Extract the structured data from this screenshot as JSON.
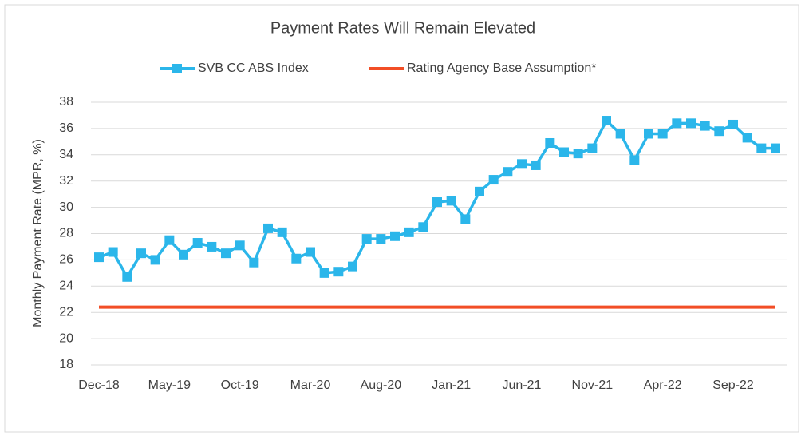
{
  "chart_data": {
    "type": "line",
    "title": "Payment Rates Will Remain Elevated",
    "y_label": "Monthly Payment Rate (MPR, %)",
    "categories": [
      "Dec-18",
      null,
      null,
      null,
      null,
      "May-19",
      null,
      null,
      null,
      null,
      "Oct-19",
      null,
      null,
      null,
      null,
      "Mar-20",
      null,
      null,
      null,
      null,
      "Aug-20",
      null,
      null,
      null,
      null,
      "Jan-21",
      null,
      null,
      null,
      null,
      "Jun-21",
      null,
      null,
      null,
      null,
      "Nov-21",
      null,
      null,
      null,
      null,
      "Apr-22",
      null,
      null,
      null,
      null,
      "Sep-22",
      null,
      null,
      null
    ],
    "series": [
      {
        "name": "SVB CC ABS Index",
        "color": "#2bb6ea",
        "marker": "square",
        "values": [
          26.2,
          26.6,
          24.7,
          26.5,
          26.0,
          27.5,
          26.4,
          27.3,
          27.0,
          26.5,
          27.1,
          25.8,
          28.4,
          28.1,
          26.1,
          26.6,
          25.0,
          25.1,
          25.5,
          27.6,
          27.6,
          27.8,
          28.1,
          28.5,
          30.4,
          30.5,
          29.1,
          31.2,
          32.1,
          32.7,
          33.3,
          33.2,
          34.9,
          34.2,
          34.1,
          34.5,
          36.6,
          35.6,
          33.6,
          35.6,
          35.6,
          36.4,
          36.4,
          36.2,
          35.8,
          36.3,
          35.3,
          34.5,
          34.5
        ]
      },
      {
        "name": "Rating Agency Base Assumption*",
        "color": "#f24e26",
        "marker": "none",
        "values": [
          22.4,
          22.4,
          22.4,
          22.4,
          22.4,
          22.4,
          22.4,
          22.4,
          22.4,
          22.4,
          22.4,
          22.4,
          22.4,
          22.4,
          22.4,
          22.4,
          22.4,
          22.4,
          22.4,
          22.4,
          22.4,
          22.4,
          22.4,
          22.4,
          22.4,
          22.4,
          22.4,
          22.4,
          22.4,
          22.4,
          22.4,
          22.4,
          22.4,
          22.4,
          22.4,
          22.4,
          22.4,
          22.4,
          22.4,
          22.4,
          22.4,
          22.4,
          22.4,
          22.4,
          22.4,
          22.4,
          22.4,
          22.4,
          22.4
        ]
      }
    ],
    "ylim": [
      18,
      38
    ],
    "yticks": [
      18,
      20,
      22,
      24,
      26,
      28,
      30,
      32,
      34,
      36,
      38
    ],
    "grid": true,
    "legend": "top"
  }
}
